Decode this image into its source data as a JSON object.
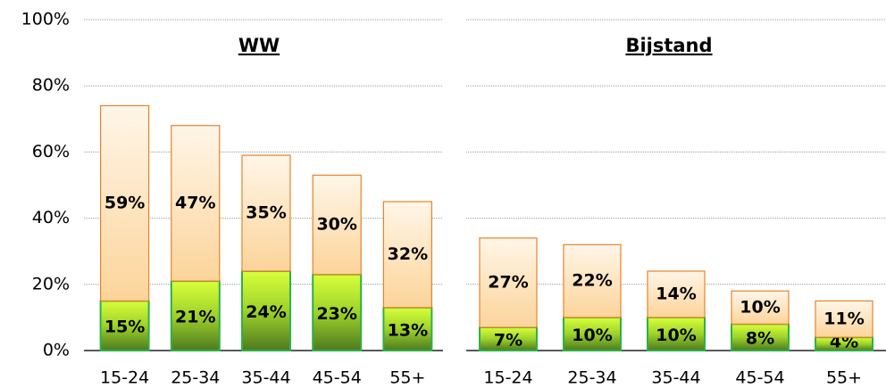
{
  "chart_data": [
    {
      "type": "stacked-bar",
      "title": "WW",
      "categories": [
        "15-24",
        "25-34",
        "35-44",
        "45-54",
        "55+"
      ],
      "series": [
        {
          "color": "#2bb24a",
          "values": [
            15,
            21,
            24,
            23,
            13
          ],
          "value_labels": [
            "15%",
            "21%",
            "24%",
            "23%",
            "13%"
          ]
        },
        {
          "color": "#e8822a",
          "values": [
            59,
            47,
            35,
            30,
            32
          ],
          "value_labels": [
            "59%",
            "47%",
            "35%",
            "30%",
            "32%"
          ]
        }
      ],
      "ylim": [
        0,
        100
      ],
      "yticks": [
        {
          "value": 0,
          "label": "0%"
        },
        {
          "value": 20,
          "label": "20%"
        },
        {
          "value": 40,
          "label": "40%"
        },
        {
          "value": 60,
          "label": "60%"
        },
        {
          "value": 80,
          "label": "80%"
        },
        {
          "value": 100,
          "label": "100%"
        }
      ],
      "grid": true
    },
    {
      "type": "stacked-bar",
      "title": "Bijstand",
      "categories": [
        "15-24",
        "25-34",
        "35-44",
        "45-54",
        "55+"
      ],
      "series": [
        {
          "color": "#2bb24a",
          "values": [
            7,
            10,
            10,
            8,
            4
          ],
          "value_labels": [
            "7%",
            "10%",
            "10%",
            "8%",
            "4%"
          ]
        },
        {
          "color": "#e8822a",
          "values": [
            27,
            22,
            14,
            10,
            11
          ],
          "value_labels": [
            "27%",
            "22%",
            "14%",
            "10%",
            "11%"
          ]
        }
      ],
      "ylim": [
        0,
        100
      ],
      "yticks": [
        0,
        20,
        40,
        60,
        80,
        100
      ],
      "grid": true
    }
  ]
}
